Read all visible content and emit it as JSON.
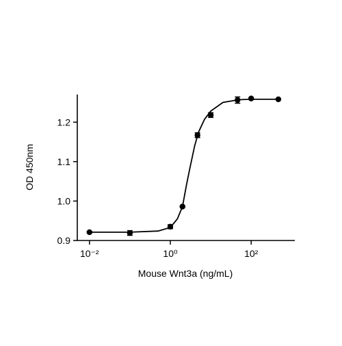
{
  "chart_data": {
    "type": "scatter",
    "x_label": "Mouse Wnt3a (ng/mL)",
    "y_label": "OD 450nm",
    "xscale": "log",
    "xlim": [
      0.005,
      1200
    ],
    "ylim": [
      0.9,
      1.27
    ],
    "xticks": [
      {
        "value": 0.01,
        "label": "10⁻²"
      },
      {
        "value": 1,
        "label": "10⁰"
      },
      {
        "value": 100,
        "label": "10²"
      }
    ],
    "yticks": [
      0.9,
      {
        "value": 1,
        "label": "1.0"
      },
      1.1,
      1.2
    ],
    "series": [
      {
        "type": "line",
        "color": "#000000",
        "x": [
          0.01,
          0.1,
          0.5,
          1,
          1.5,
          2,
          2.5,
          3,
          4,
          5,
          7,
          10,
          20,
          50,
          100,
          500
        ],
        "values": [
          0.921,
          0.921,
          0.924,
          0.933,
          0.955,
          0.986,
          1.04,
          1.08,
          1.14,
          1.175,
          1.207,
          1.228,
          1.25,
          1.257,
          1.258,
          1.258
        ]
      },
      {
        "type": "scatter",
        "color": "#000000",
        "x": [
          0.01,
          0.1,
          1,
          2,
          4.7,
          10,
          46,
          100,
          470
        ],
        "values": [
          0.921,
          0.919,
          0.935,
          0.986,
          1.167,
          1.218,
          1.256,
          1.26,
          1.258
        ],
        "errors": [
          0.002,
          0.006,
          0.005,
          0.002,
          0.006,
          0.006,
          0.008,
          0.002,
          0.002
        ]
      }
    ]
  }
}
